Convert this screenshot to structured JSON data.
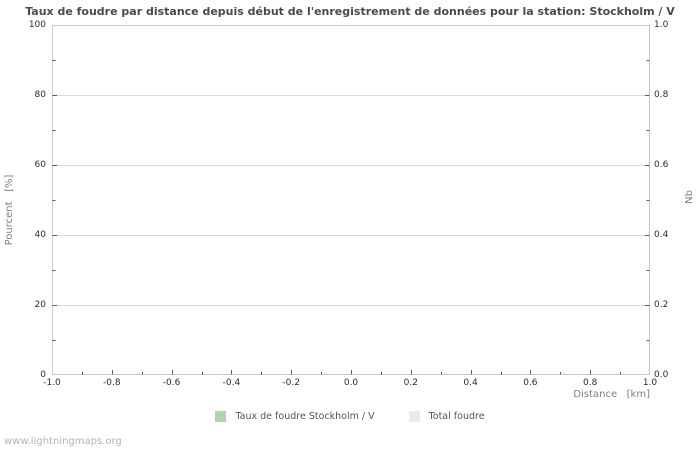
{
  "watermark": "www.lightningmaps.org",
  "chart_data": {
    "type": "bar",
    "title": "Taux de foudre par distance depuis début de l'enregistrement de données pour la station: Stockholm / V",
    "xlabel": "Distance   [km]",
    "ylabel_left": "Pourcent   [%]",
    "ylabel_right": "Nb",
    "xlim": [
      -1.0,
      1.0
    ],
    "ylim_left": [
      0,
      100
    ],
    "ylim_right": [
      0.0,
      1.0
    ],
    "x_ticks": [
      "-1.0",
      "-0.8",
      "-0.6",
      "-0.4",
      "-0.2",
      "0.0",
      "0.2",
      "0.4",
      "0.6",
      "0.8",
      "1.0"
    ],
    "y_ticks_left": [
      "0",
      "20",
      "40",
      "60",
      "80",
      "100"
    ],
    "y_ticks_right": [
      "0.0",
      "0.2",
      "0.4",
      "0.6",
      "0.8",
      "1.0"
    ],
    "grid": "horizontal-major",
    "legend_position": "bottom-center",
    "legend": [
      {
        "label": "Taux de foudre Stockholm / V",
        "color": "#aad8aa"
      },
      {
        "label": "Total foudre",
        "color": "#e8e8f8"
      }
    ],
    "series": [
      {
        "name": "Taux de foudre Stockholm / V",
        "x": [],
        "values": []
      },
      {
        "name": "Total foudre",
        "x": [],
        "values": []
      }
    ],
    "note": "chart contains no plotted data points (empty plot area)",
    "frame_color": "#c9c9c9",
    "grid_color": "#d9d9d9",
    "tick_color": "#5a5a5a"
  }
}
